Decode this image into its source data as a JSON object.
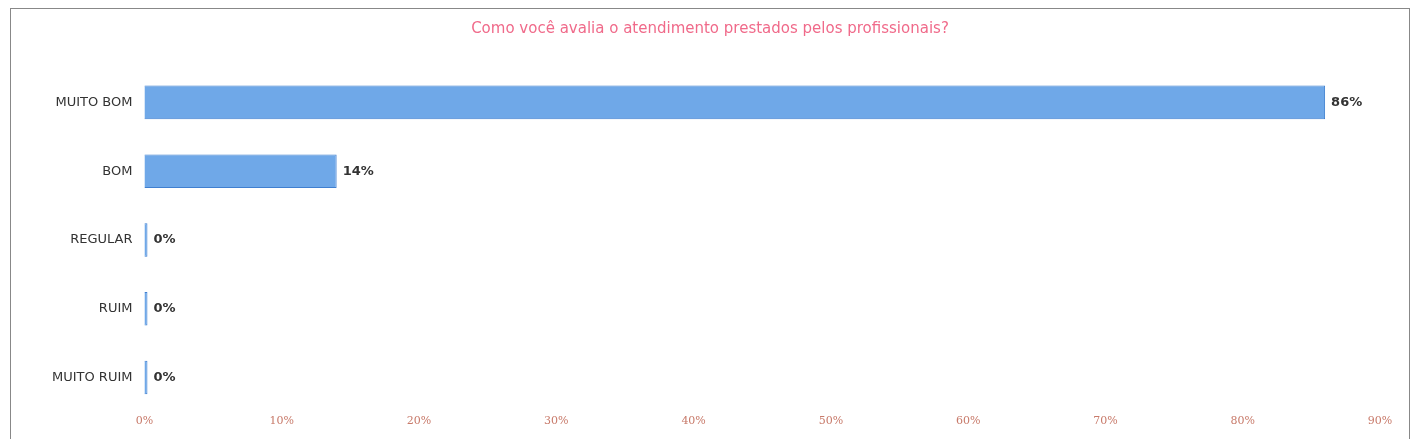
{
  "chart_data": {
    "type": "bar",
    "orientation": "horizontal",
    "title": "Como você avalia o atendimento prestados pelos profissionais?",
    "categories": [
      "MUITO BOM",
      "BOM",
      "REGULAR",
      "RUIM",
      "MUITO RUIM"
    ],
    "values": [
      86,
      14,
      0,
      0,
      0
    ],
    "color": "#6fa8e8",
    "value_labels": [
      "86%",
      "14%",
      "0%",
      "0%",
      "0%"
    ],
    "xlim": [
      0,
      90
    ],
    "xticks": [
      {
        "value": 0,
        "label": "0%"
      },
      {
        "value": 10,
        "label": "10%"
      },
      {
        "value": 20,
        "label": "20%"
      },
      {
        "value": 30,
        "label": "30%"
      },
      {
        "value": 40,
        "label": "40%"
      },
      {
        "value": 50,
        "label": "50%"
      },
      {
        "value": 60,
        "label": "60%"
      },
      {
        "value": 70,
        "label": "70%"
      },
      {
        "value": 80,
        "label": "80%"
      },
      {
        "value": 90,
        "label": "90%"
      }
    ],
    "grid": false,
    "legend": false
  }
}
